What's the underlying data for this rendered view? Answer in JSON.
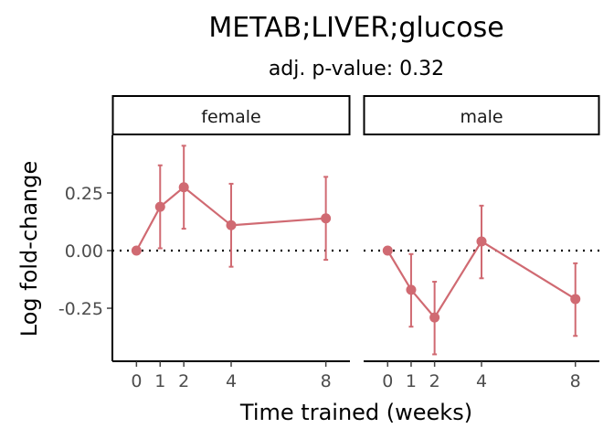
{
  "chart_data": {
    "type": "line",
    "title": "METAB;LIVER;glucose",
    "subtitle": "adj. p-value: 0.32",
    "xlabel": "Time trained (weeks)",
    "ylabel": "Log fold-change",
    "x_ticks": [
      0,
      1,
      2,
      4,
      8
    ],
    "y_ticks": [
      -0.25,
      0.0,
      0.25
    ],
    "y_tick_labels": [
      "-0.25",
      "0.00",
      "0.25"
    ],
    "xlim": [
      -0.4,
      8.4
    ],
    "ylim": [
      -0.48,
      0.5
    ],
    "reference_line": 0,
    "color": "#D06A72",
    "panels": [
      {
        "label": "female",
        "x": [
          0,
          1,
          2,
          4,
          8
        ],
        "y": [
          0.0,
          0.19,
          0.275,
          0.11,
          0.14
        ],
        "lower": [
          0.0,
          0.01,
          0.095,
          -0.07,
          -0.04
        ],
        "upper": [
          0.0,
          0.37,
          0.455,
          0.29,
          0.32
        ]
      },
      {
        "label": "male",
        "x": [
          0,
          1,
          2,
          4,
          8
        ],
        "y": [
          0.0,
          -0.17,
          -0.29,
          0.04,
          -0.21
        ],
        "lower": [
          0.0,
          -0.33,
          -0.45,
          -0.12,
          -0.37
        ],
        "upper": [
          0.0,
          -0.015,
          -0.135,
          0.195,
          -0.055
        ]
      }
    ]
  }
}
